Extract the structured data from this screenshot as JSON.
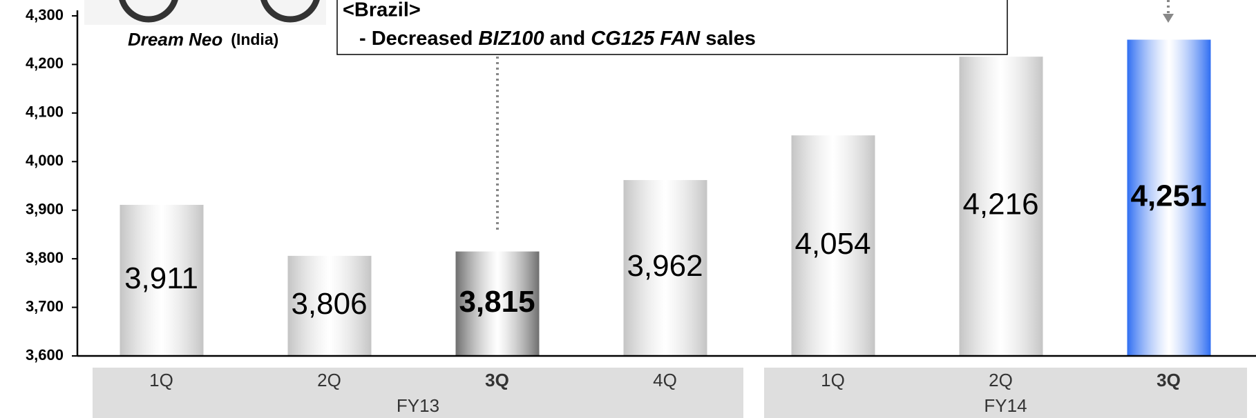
{
  "chart_data": {
    "type": "bar",
    "categories": [
      "1Q",
      "2Q",
      "3Q",
      "4Q",
      "1Q",
      "2Q",
      "3Q"
    ],
    "groups": [
      {
        "label": "FY13",
        "span": [
          0,
          3
        ]
      },
      {
        "label": "FY14",
        "span": [
          4,
          6
        ]
      }
    ],
    "values": [
      3911,
      3806,
      3815,
      3962,
      4054,
      4216,
      4251
    ],
    "value_labels": [
      "3,911",
      "3,806",
      "3,815",
      "3,962",
      "4,054",
      "4,216",
      "4,251"
    ],
    "colors": [
      "#c4c4c4",
      "#c4c4c4",
      "#6e6e6e",
      "#c4c4c4",
      "#c4c4c4",
      "#c4c4c4",
      "#2f6ef2"
    ],
    "emphasis": [
      false,
      false,
      true,
      false,
      false,
      false,
      true
    ],
    "ylim": [
      3600,
      4300
    ],
    "yticks": [
      {
        "value": 3600,
        "label": "3,600"
      },
      {
        "value": 3700,
        "label": "3,700"
      },
      {
        "value": 3800,
        "label": "3,800"
      },
      {
        "value": 3900,
        "label": "3,900"
      },
      {
        "value": 4000,
        "label": "4,000"
      },
      {
        "value": 4100,
        "label": "4,100"
      },
      {
        "value": 4200,
        "label": "4,200"
      },
      {
        "value": 4300,
        "label": "4,300"
      }
    ],
    "annotations": {
      "model": "Dream Neo",
      "region": "(India)",
      "heading": "<Brazil>",
      "line": [
        "- Decreased",
        "BIZ100",
        "and",
        "CG125 FAN",
        "sales"
      ]
    }
  }
}
